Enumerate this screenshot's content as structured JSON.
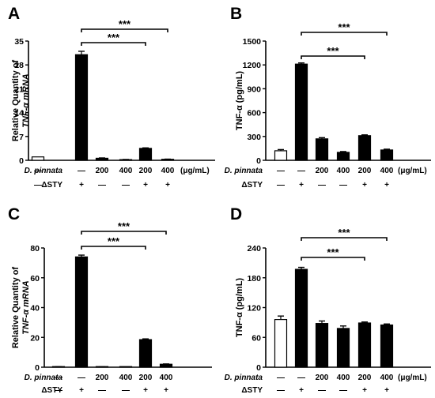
{
  "rows": {
    "treatment_label": "D. pinnata",
    "infection_label": "ΔSTY",
    "unit": "(μg/mL)",
    "treatment_values": [
      "—",
      "—",
      "200",
      "400",
      "200",
      "400"
    ],
    "infection_values": [
      "—",
      "+",
      "—",
      "—",
      "+",
      "+"
    ]
  },
  "significance_label": "***",
  "chart_data": [
    {
      "panel": "A",
      "type": "bar",
      "ylabel_line1": "Relative Quantity of",
      "ylabel_line2": "TNF-α mRNA",
      "ylim": [
        0,
        35
      ],
      "yticks": [
        0,
        7,
        14,
        21,
        28,
        35
      ],
      "tick_labels": [
        "0",
        "7",
        "14",
        "21",
        "28",
        "35"
      ],
      "values": [
        1.0,
        31.0,
        0.6,
        0.2,
        3.5,
        0.3
      ],
      "errors": [
        0.0,
        1.0,
        0.1,
        0.05,
        0.15,
        0.05
      ],
      "fills": [
        "#ffffff",
        "#000000",
        "#000000",
        "#000000",
        "#000000",
        "#000000"
      ],
      "brackets": [
        {
          "from": 1,
          "to": 5,
          "label": "***"
        },
        {
          "from": 1,
          "to": 4,
          "label": "***"
        }
      ]
    },
    {
      "panel": "B",
      "type": "bar",
      "ylabel_line1": "TNF-α (pg/mL)",
      "ylabel_line2": "",
      "ylim": [
        0,
        1500
      ],
      "yticks": [
        0,
        300,
        600,
        900,
        1200,
        1500
      ],
      "tick_labels": [
        "0",
        "300",
        "600",
        "900",
        "1200",
        "1500"
      ],
      "values": [
        120,
        1210,
        270,
        100,
        310,
        130
      ],
      "errors": [
        15,
        15,
        15,
        10,
        10,
        10
      ],
      "fills": [
        "#ffffff",
        "#000000",
        "#000000",
        "#000000",
        "#000000",
        "#000000"
      ],
      "brackets": [
        {
          "from": 1,
          "to": 5,
          "label": "***"
        },
        {
          "from": 1,
          "to": 4,
          "label": "***"
        }
      ]
    },
    {
      "panel": "C",
      "type": "bar",
      "ylabel_line1": "Relative Quantity of",
      "ylabel_line2": "TNF-α mRNA",
      "ylim": [
        0,
        80
      ],
      "yticks": [
        0,
        20,
        40,
        60,
        80
      ],
      "tick_labels": [
        "0",
        "20",
        "40",
        "60",
        "80"
      ],
      "values": [
        0.3,
        74,
        0.2,
        0.1,
        18.5,
        2.0
      ],
      "errors": [
        0.05,
        1.2,
        0.05,
        0.05,
        0.5,
        0.2
      ],
      "fills": [
        "#ffffff",
        "#000000",
        "#000000",
        "#000000",
        "#000000",
        "#000000"
      ],
      "brackets": [
        {
          "from": 1,
          "to": 5,
          "label": "***"
        },
        {
          "from": 1,
          "to": 4,
          "label": "***"
        }
      ]
    },
    {
      "panel": "D",
      "type": "bar",
      "ylabel_line1": "TNF-α (pg/mL)",
      "ylabel_line2": "",
      "ylim": [
        0,
        240
      ],
      "yticks": [
        0,
        60,
        120,
        180,
        240
      ],
      "tick_labels": [
        "0",
        "60",
        "120",
        "180",
        "240"
      ],
      "values": [
        96,
        197,
        88,
        78,
        89,
        85
      ],
      "errors": [
        7,
        4,
        5,
        5,
        2,
        2
      ],
      "fills": [
        "#ffffff",
        "#000000",
        "#000000",
        "#000000",
        "#000000",
        "#000000"
      ],
      "brackets": [
        {
          "from": 1,
          "to": 5,
          "label": "***"
        },
        {
          "from": 1,
          "to": 4,
          "label": "***"
        }
      ]
    }
  ]
}
